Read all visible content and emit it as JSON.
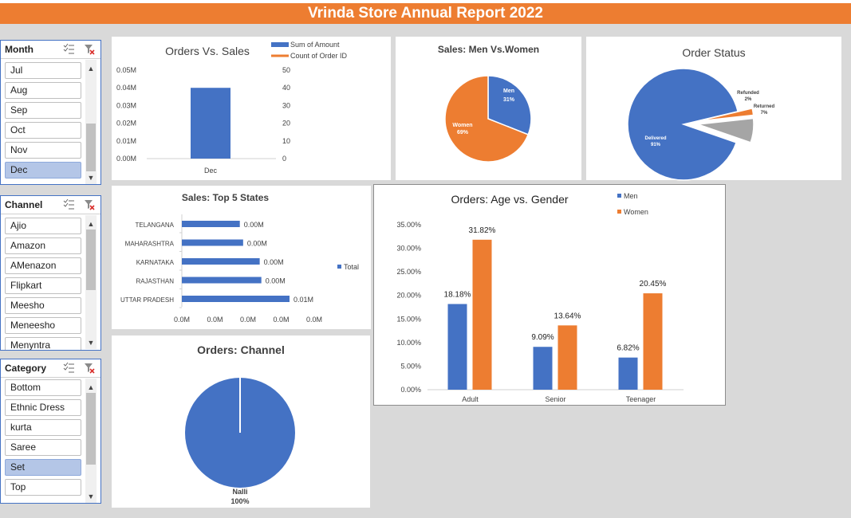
{
  "banner": {
    "title": "Vrinda Store Annual Report 2022"
  },
  "colors": {
    "blue": "#4472c4",
    "orange": "#ed7d31",
    "grey": "#a5a5a5",
    "banner": "#ed7d31"
  },
  "slicers": {
    "month": {
      "title": "Month",
      "items": [
        "Jul",
        "Aug",
        "Sep",
        "Oct",
        "Nov",
        "Dec"
      ],
      "selected": "Dec"
    },
    "channel": {
      "title": "Channel",
      "items": [
        "Ajio",
        "Amazon",
        "AMenazon",
        "Flipkart",
        "Meesho",
        "Meneesho",
        "Menyntra"
      ]
    },
    "category": {
      "title": "Category",
      "items": [
        "Bottom",
        "Ethnic Dress",
        "kurta",
        "Saree",
        "Set",
        "Top"
      ],
      "selected": "Set"
    }
  },
  "chart_data": [
    {
      "id": "orders_vs_sales",
      "type": "bar",
      "title": "Orders Vs. Sales",
      "categories": [
        "Dec"
      ],
      "series": [
        {
          "name": "Sum of Amount",
          "values": [
            0.04
          ],
          "axis": "left"
        },
        {
          "name": "Count of Order ID",
          "values": [
            0
          ],
          "axis": "right"
        }
      ],
      "y_ticks_left": [
        "0.00M",
        "0.01M",
        "0.02M",
        "0.03M",
        "0.04M",
        "0.05M"
      ],
      "y_ticks_right": [
        "0",
        "10",
        "20",
        "30",
        "40",
        "50"
      ],
      "ylim": [
        0,
        0.05
      ],
      "legend_position": "top-right"
    },
    {
      "id": "sales_men_women",
      "type": "pie",
      "title": "Sales: Men Vs.Women",
      "slices": [
        {
          "label": "Men",
          "value": 31,
          "pct_label": "31%"
        },
        {
          "label": "Women",
          "value": 69,
          "pct_label": "69%"
        }
      ]
    },
    {
      "id": "order_status",
      "type": "pie",
      "title": "Order Status",
      "slices": [
        {
          "label": "Delivered",
          "value": 91,
          "pct_label": "91%"
        },
        {
          "label": "Refunded",
          "value": 2,
          "pct_label": "2%"
        },
        {
          "label": "Returned",
          "value": 7,
          "pct_label": "7%"
        }
      ]
    },
    {
      "id": "top5_states",
      "type": "bar",
      "orientation": "horizontal",
      "title": "Sales: Top 5 States",
      "categories": [
        "TELANGANA",
        "MAHARASHTRA",
        "KARNATAKA",
        "RAJASTHAN",
        "UTTAR PRADESH"
      ],
      "values": [
        0.0035,
        0.0037,
        0.0047,
        0.0048,
        0.0065
      ],
      "data_labels": [
        "0.00M",
        "0.00M",
        "0.00M",
        "0.00M",
        "0.01M"
      ],
      "x_ticks": [
        "0.0M",
        "0.0M",
        "0.0M",
        "0.0M",
        "0.0M"
      ],
      "legend": "Total",
      "legend_position": "right"
    },
    {
      "id": "orders_age_gender",
      "type": "bar",
      "title": "Orders: Age vs. Gender",
      "categories": [
        "Adult",
        "Senior",
        "Teenager"
      ],
      "series": [
        {
          "name": "Men",
          "values": [
            18.18,
            9.09,
            6.82
          ],
          "labels": [
            "18.18%",
            "9.09%",
            "6.82%"
          ]
        },
        {
          "name": "Women",
          "values": [
            31.82,
            13.64,
            20.45
          ],
          "labels": [
            "31.82%",
            "13.64%",
            "20.45%"
          ]
        }
      ],
      "y_ticks": [
        "0.00%",
        "5.00%",
        "10.00%",
        "15.00%",
        "20.00%",
        "25.00%",
        "30.00%",
        "35.00%"
      ],
      "ylim": [
        0,
        35
      ],
      "legend_position": "top-right"
    },
    {
      "id": "orders_channel",
      "type": "pie",
      "title": "Orders: Channel",
      "slices": [
        {
          "label": "Nalli",
          "value": 100,
          "pct_label": "100%"
        }
      ]
    }
  ]
}
